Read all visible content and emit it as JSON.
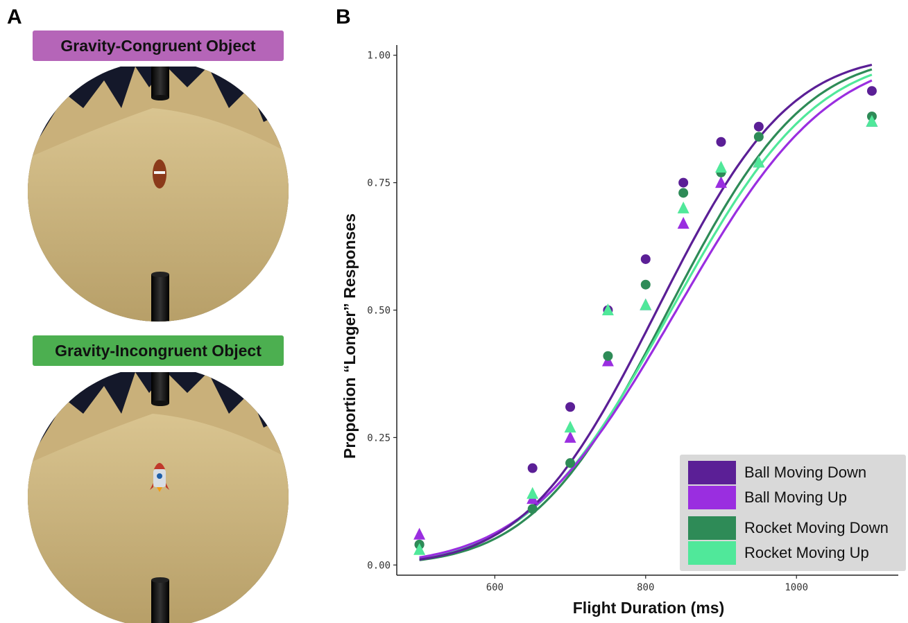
{
  "panel_a": {
    "letter": "A",
    "top_banner": {
      "label": "Gravity-Congruent Object",
      "color": "#b565b8"
    },
    "bottom_banner": {
      "label": "Gravity-Incongruent Object",
      "color": "#4caf50"
    }
  },
  "panel_b": {
    "letter": "B"
  },
  "colors": {
    "ball_down": "#5b1f96",
    "ball_up": "#9a2ee0",
    "rocket_down": "#2e8b57",
    "rocket_up": "#50e89a",
    "sand": "#c8b27a",
    "sky": "#14182a"
  },
  "chart_data": {
    "type": "scatter",
    "xlabel": "Flight Duration (ms)",
    "ylabel": "Proportion “Longer” Responses",
    "xlim": [
      470,
      1135
    ],
    "ylim": [
      -0.02,
      1.02
    ],
    "x_ticks": [
      600,
      800,
      1000
    ],
    "y_ticks": [
      0.0,
      0.25,
      0.5,
      0.75,
      1.0
    ],
    "y_tick_labels": [
      "0.00",
      "0.25",
      "0.50",
      "0.75",
      "1.00"
    ],
    "x": [
      500,
      650,
      700,
      750,
      800,
      850,
      900,
      950,
      1100
    ],
    "grid": false,
    "legend_position": "bottom-right",
    "series": [
      {
        "name": "Ball Moving Down",
        "marker": "circle",
        "color": "#5b1f96",
        "values": [
          0.04,
          0.19,
          0.31,
          0.5,
          0.6,
          0.75,
          0.83,
          0.86,
          0.93
        ],
        "curve": {
          "mu": 815,
          "sigma": 137
        }
      },
      {
        "name": "Ball Moving Up",
        "marker": "triangle",
        "color": "#9a2ee0",
        "values": [
          0.06,
          0.13,
          0.25,
          0.4,
          0.51,
          0.67,
          0.75,
          0.79,
          0.87
        ],
        "curve": {
          "mu": 841,
          "sigma": 157
        }
      },
      {
        "name": "Rocket Moving Down",
        "marker": "circle",
        "color": "#2e8b57",
        "values": [
          0.04,
          0.11,
          0.2,
          0.41,
          0.55,
          0.73,
          0.77,
          0.84,
          0.88
        ],
        "curve": {
          "mu": 830,
          "sigma": 141
        }
      },
      {
        "name": "Rocket Moving Up",
        "marker": "triangle",
        "color": "#50e89a",
        "values": [
          0.03,
          0.14,
          0.27,
          0.5,
          0.51,
          0.7,
          0.78,
          0.79,
          0.87
        ],
        "curve": {
          "mu": 834,
          "sigma": 150
        }
      }
    ]
  }
}
